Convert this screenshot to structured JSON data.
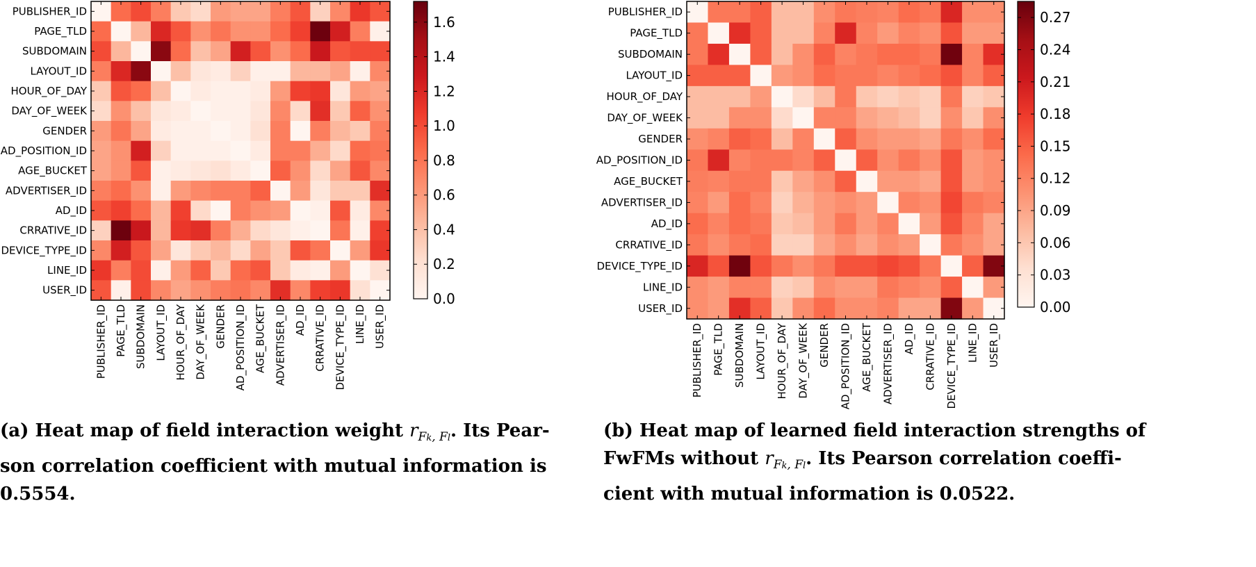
{
  "chart_data": [
    {
      "type": "heatmap",
      "labels": [
        "PUBLISHER_ID",
        "PAGE_TLD",
        "SUBDOMAIN",
        "LAYOUT_ID",
        "HOUR_OF_DAY",
        "DAY_OF_WEEK",
        "GENDER",
        "AD_POSITION_ID",
        "AGE_BUCKET",
        "ADVERTISER_ID",
        "AD_ID",
        "CRRATIVE_ID",
        "DEVICE_TYPE_ID",
        "LINE_ID",
        "USER_ID"
      ],
      "vmin": 0.0,
      "vmax": 1.72,
      "colorbar_ticks": [
        "0.0",
        "0.2",
        "0.4",
        "0.6",
        "0.8",
        "1.0",
        "1.2",
        "1.4",
        "1.6"
      ],
      "colormap": "Reds",
      "matrix": [
        [
          0.0,
          0.85,
          1.0,
          0.75,
          0.35,
          0.25,
          0.6,
          0.55,
          0.55,
          0.75,
          0.95,
          0.3,
          0.7,
          1.1,
          0.95
        ],
        [
          0.85,
          0.0,
          0.45,
          1.2,
          0.95,
          0.65,
          0.8,
          0.65,
          0.65,
          0.85,
          1.05,
          1.7,
          1.25,
          0.75,
          0.05
        ],
        [
          1.0,
          0.45,
          0.0,
          1.6,
          0.85,
          0.4,
          0.55,
          1.25,
          0.95,
          0.65,
          0.85,
          1.3,
          0.95,
          1.0,
          1.0
        ],
        [
          0.75,
          1.2,
          1.6,
          0.0,
          0.4,
          0.15,
          0.1,
          0.3,
          0.05,
          0.05,
          0.45,
          0.45,
          0.55,
          0.05,
          0.7
        ],
        [
          0.35,
          0.95,
          0.85,
          0.4,
          0.0,
          0.1,
          0.05,
          0.05,
          0.1,
          0.6,
          1.05,
          1.1,
          0.15,
          0.6,
          0.55
        ],
        [
          0.25,
          0.65,
          0.4,
          0.15,
          0.1,
          0.0,
          0.05,
          0.05,
          0.15,
          0.7,
          0.25,
          1.15,
          0.35,
          0.9,
          0.65
        ],
        [
          0.6,
          0.8,
          0.55,
          0.1,
          0.05,
          0.05,
          0.0,
          0.05,
          0.2,
          0.75,
          0.0,
          0.75,
          0.45,
          0.35,
          0.75
        ],
        [
          0.55,
          0.65,
          1.25,
          0.3,
          0.05,
          0.05,
          0.05,
          0.0,
          0.1,
          0.75,
          0.75,
          0.5,
          0.25,
          0.85,
          0.8
        ],
        [
          0.55,
          0.65,
          0.95,
          0.05,
          0.1,
          0.15,
          0.2,
          0.1,
          0.0,
          0.9,
          0.65,
          0.25,
          0.55,
          0.95,
          0.7
        ],
        [
          0.75,
          0.85,
          0.65,
          0.05,
          0.6,
          0.7,
          0.75,
          0.75,
          0.9,
          0.0,
          0.6,
          0.15,
          0.35,
          0.35,
          1.15
        ],
        [
          0.95,
          1.05,
          0.85,
          0.45,
          1.05,
          0.25,
          0.0,
          0.75,
          0.65,
          0.6,
          0.0,
          0.05,
          0.95,
          0.1,
          0.7
        ],
        [
          0.3,
          1.7,
          1.3,
          0.45,
          1.1,
          1.15,
          0.75,
          0.5,
          0.25,
          0.15,
          0.05,
          0.0,
          0.8,
          0.05,
          1.05
        ],
        [
          0.7,
          1.25,
          0.95,
          0.55,
          0.15,
          0.35,
          0.45,
          0.25,
          0.55,
          0.35,
          0.95,
          0.8,
          0.0,
          0.6,
          1.1
        ],
        [
          1.1,
          0.75,
          1.0,
          0.05,
          0.6,
          0.9,
          0.35,
          0.85,
          0.95,
          0.35,
          0.1,
          0.05,
          0.6,
          0.0,
          0.2
        ],
        [
          0.95,
          0.05,
          1.0,
          0.7,
          0.55,
          0.65,
          0.75,
          0.8,
          0.7,
          1.15,
          0.7,
          1.05,
          1.1,
          0.2,
          0.0
        ]
      ]
    },
    {
      "type": "heatmap",
      "labels": [
        "PUBLISHER_ID",
        "PAGE_TLD",
        "SUBDOMAIN",
        "LAYOUT_ID",
        "HOUR_OF_DAY",
        "DAY_OF_WEEK",
        "GENDER",
        "AD_POSITION_ID",
        "AGE_BUCKET",
        "ADVERTISER_ID",
        "AD_ID",
        "CRRATIVE_ID",
        "DEVICE_TYPE_ID",
        "LINE_ID",
        "USER_ID"
      ],
      "vmin": 0.0,
      "vmax": 0.285,
      "colorbar_ticks": [
        "0.00",
        "0.03",
        "0.06",
        "0.09",
        "0.12",
        "0.15",
        "0.18",
        "0.21",
        "0.24",
        "0.27"
      ],
      "colormap": "Reds",
      "matrix": [
        [
          0.0,
          0.13,
          0.13,
          0.15,
          0.07,
          0.07,
          0.11,
          0.13,
          0.125,
          0.12,
          0.14,
          0.13,
          0.2,
          0.11,
          0.11
        ],
        [
          0.13,
          0.0,
          0.19,
          0.15,
          0.07,
          0.07,
          0.12,
          0.2,
          0.12,
          0.1,
          0.12,
          0.11,
          0.16,
          0.1,
          0.1
        ],
        [
          0.13,
          0.19,
          0.0,
          0.15,
          0.07,
          0.11,
          0.15,
          0.12,
          0.13,
          0.14,
          0.14,
          0.13,
          0.28,
          0.12,
          0.19
        ],
        [
          0.15,
          0.15,
          0.15,
          0.0,
          0.1,
          0.11,
          0.14,
          0.13,
          0.13,
          0.12,
          0.13,
          0.14,
          0.16,
          0.12,
          0.15
        ],
        [
          0.07,
          0.07,
          0.07,
          0.1,
          0.0,
          0.04,
          0.07,
          0.13,
          0.06,
          0.05,
          0.06,
          0.05,
          0.13,
          0.05,
          0.06
        ],
        [
          0.07,
          0.07,
          0.11,
          0.11,
          0.04,
          0.0,
          0.12,
          0.12,
          0.09,
          0.08,
          0.07,
          0.05,
          0.11,
          0.06,
          0.11
        ],
        [
          0.11,
          0.12,
          0.15,
          0.14,
          0.07,
          0.12,
          0.0,
          0.15,
          0.11,
          0.1,
          0.1,
          0.09,
          0.13,
          0.11,
          0.14
        ],
        [
          0.13,
          0.2,
          0.12,
          0.13,
          0.13,
          0.12,
          0.15,
          0.0,
          0.15,
          0.11,
          0.13,
          0.11,
          0.16,
          0.1,
          0.11
        ],
        [
          0.125,
          0.12,
          0.13,
          0.13,
          0.06,
          0.09,
          0.11,
          0.15,
          0.0,
          0.1,
          0.1,
          0.09,
          0.16,
          0.1,
          0.11
        ],
        [
          0.12,
          0.1,
          0.14,
          0.12,
          0.05,
          0.08,
          0.1,
          0.11,
          0.1,
          0.0,
          0.12,
          0.11,
          0.17,
          0.13,
          0.12
        ],
        [
          0.14,
          0.12,
          0.14,
          0.13,
          0.06,
          0.07,
          0.1,
          0.13,
          0.1,
          0.12,
          0.0,
          0.1,
          0.16,
          0.12,
          0.09
        ],
        [
          0.13,
          0.11,
          0.13,
          0.14,
          0.05,
          0.05,
          0.09,
          0.11,
          0.09,
          0.11,
          0.1,
          0.0,
          0.13,
          0.11,
          0.09
        ],
        [
          0.2,
          0.16,
          0.28,
          0.16,
          0.13,
          0.11,
          0.13,
          0.16,
          0.16,
          0.17,
          0.16,
          0.13,
          0.0,
          0.15,
          0.27
        ],
        [
          0.11,
          0.1,
          0.12,
          0.12,
          0.05,
          0.06,
          0.11,
          0.1,
          0.1,
          0.13,
          0.12,
          0.11,
          0.15,
          0.0,
          0.1
        ],
        [
          0.11,
          0.1,
          0.19,
          0.15,
          0.06,
          0.11,
          0.14,
          0.11,
          0.11,
          0.12,
          0.09,
          0.09,
          0.27,
          0.1,
          0.0
        ]
      ]
    }
  ],
  "captions": {
    "a": {
      "prefix": "(a) Heat map of field interaction weight ",
      "sym_r": "r",
      "sym_sub": "F",
      "sym_sub_k": "k",
      "sym_sub_l": "l",
      "after_sym": ". Its Pear-",
      "line2": "son correlation coefficient with mutual information is",
      "line3": "0.5554."
    },
    "b": {
      "line1": "(b) Heat map of learned field interaction strengths of",
      "prefix2": "FwFMs without ",
      "sym_r": "r",
      "after_sym": ". Its Pearson correlation coeffi-",
      "line3": "cient with mutual information is 0.0522."
    }
  }
}
